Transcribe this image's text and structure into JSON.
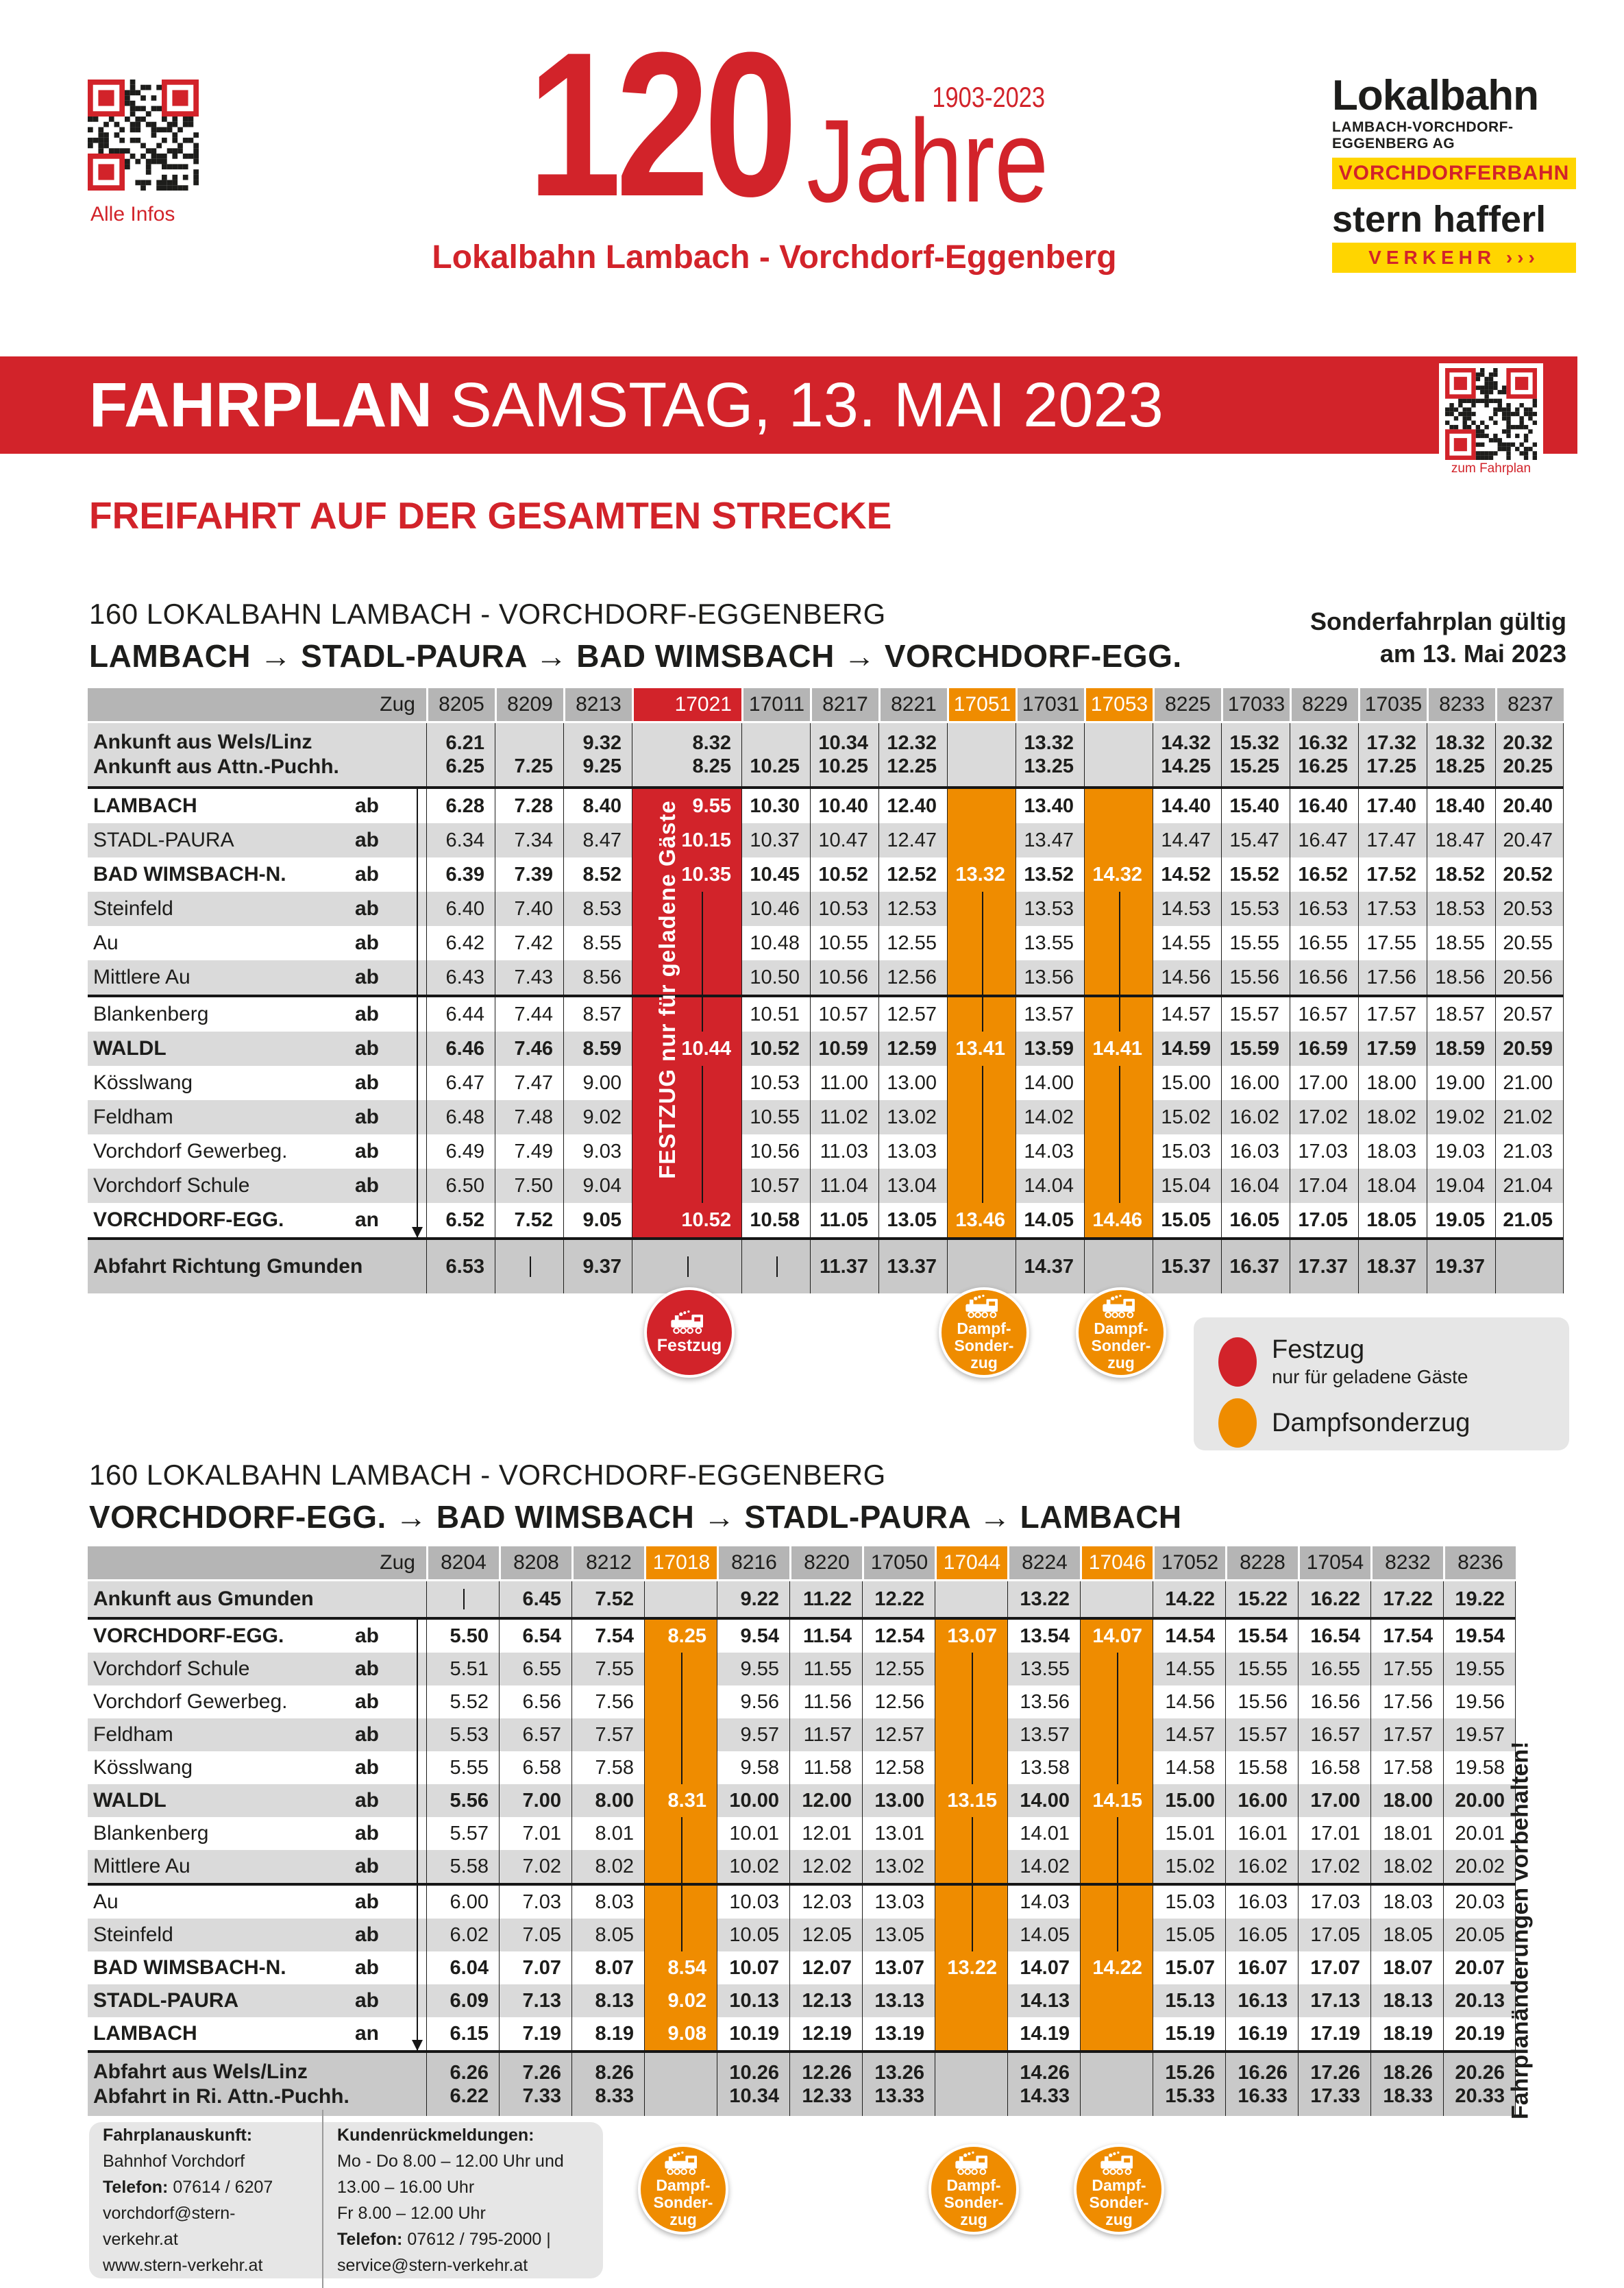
{
  "colors": {
    "red": "#d2232a",
    "orange": "#ef8c00",
    "yellow": "#ffd500"
  },
  "header": {
    "qr_caption": "Alle Infos",
    "years": "120",
    "period": "1903-2023",
    "jahre": "Jahre",
    "subtitle": "Lokalbahn Lambach - Vorchdorf-Eggenberg",
    "logo_lokalbahn": "Lokalbahn",
    "logo_ag": "LAMBACH-VORCHDORF-EGGENBERG AG",
    "logo_badge1": "VORCHDORFERBAHN",
    "logo_stern": "stern hafferl",
    "logo_badge2": "VERKEHR ›››"
  },
  "banner": {
    "title_bold": "FAHRPLAN",
    "title_rest": " SAMSTAG, 13. MAI 2023",
    "qr_caption": "zum Fahrplan"
  },
  "freifahrt": "FREIFAHRT AUF DER GESAMTEN STRECKE",
  "note": {
    "line1": "Sonderfahrplan gültig",
    "line2": "am 13. Mai 2023"
  },
  "side_note": "Fahrplanänderungen vorbehalten!",
  "legend": {
    "items": [
      {
        "color": "#d2232a",
        "label": "Festzug",
        "sub": "nur für geladene Gäste"
      },
      {
        "color": "#ef8c00",
        "label": "Dampfsonderzug",
        "sub": ""
      }
    ]
  },
  "badges": {
    "festzug": "Festzug",
    "dampf_lines": [
      "Dampf-",
      "Sonder-",
      "zug"
    ]
  },
  "table1": {
    "heading": "160 LOKALBAHN LAMBACH - VORCHDORF-EGGENBERG",
    "route": "LAMBACH → STADL-PAURA → BAD WIMSBACH → VORCHDORF-EGG.",
    "zug": "Zug",
    "festzug_note": "FESTZUG   nur für geladene Gäste",
    "trains": [
      {
        "id": "8205",
        "type": "plain"
      },
      {
        "id": "8209",
        "type": "plain"
      },
      {
        "id": "8213",
        "type": "plain"
      },
      {
        "id": "17021",
        "type": "red"
      },
      {
        "id": "17011",
        "type": "plain"
      },
      {
        "id": "8217",
        "type": "plain"
      },
      {
        "id": "8221",
        "type": "plain"
      },
      {
        "id": "17051",
        "type": "orange"
      },
      {
        "id": "17031",
        "type": "plain"
      },
      {
        "id": "17053",
        "type": "orange"
      },
      {
        "id": "8225",
        "type": "plain"
      },
      {
        "id": "17033",
        "type": "plain"
      },
      {
        "id": "8229",
        "type": "plain"
      },
      {
        "id": "17035",
        "type": "plain"
      },
      {
        "id": "8233",
        "type": "plain"
      },
      {
        "id": "8237",
        "type": "plain"
      }
    ],
    "pre": {
      "labels": [
        "Ankunft aus Wels/Linz",
        "Ankunft aus Attn.-Puchh."
      ],
      "rows": [
        [
          "6.21",
          "",
          "9.32",
          "8.32",
          "",
          "10.34",
          "12.32",
          "",
          "13.32",
          "",
          "14.32",
          "15.32",
          "16.32",
          "17.32",
          "18.32",
          "20.32"
        ],
        [
          "6.25",
          "7.25",
          "9.25",
          "8.25",
          "10.25",
          "10.25",
          "12.25",
          "",
          "13.25",
          "",
          "14.25",
          "15.25",
          "16.25",
          "17.25",
          "18.25",
          "20.25"
        ]
      ]
    },
    "separators": [
      0,
      6
    ],
    "stations": [
      {
        "name": "LAMBACH",
        "tag": "ab",
        "bold": true,
        "values": [
          "6.28",
          "7.28",
          "8.40",
          "9.55",
          "10.30",
          "10.40",
          "12.40",
          "",
          "13.40",
          "",
          "14.40",
          "15.40",
          "16.40",
          "17.40",
          "18.40",
          "20.40"
        ]
      },
      {
        "name": "STADL-PAURA",
        "tag": "ab",
        "bold": false,
        "values": [
          "6.34",
          "7.34",
          "8.47",
          "10.15",
          "10.37",
          "10.47",
          "12.47",
          "",
          "13.47",
          "",
          "14.47",
          "15.47",
          "16.47",
          "17.47",
          "18.47",
          "20.47"
        ]
      },
      {
        "name": "BAD WIMSBACH-N.",
        "tag": "ab",
        "bold": true,
        "values": [
          "6.39",
          "7.39",
          "8.52",
          "10.35",
          "10.45",
          "10.52",
          "12.52",
          "13.32",
          "13.52",
          "14.32",
          "14.52",
          "15.52",
          "16.52",
          "17.52",
          "18.52",
          "20.52"
        ]
      },
      {
        "name": "Steinfeld",
        "tag": "ab",
        "bold": false,
        "values": [
          "6.40",
          "7.40",
          "8.53",
          "|",
          "10.46",
          "10.53",
          "12.53",
          "|",
          "13.53",
          "|",
          "14.53",
          "15.53",
          "16.53",
          "17.53",
          "18.53",
          "20.53"
        ]
      },
      {
        "name": "Au",
        "tag": "ab",
        "bold": false,
        "values": [
          "6.42",
          "7.42",
          "8.55",
          "|",
          "10.48",
          "10.55",
          "12.55",
          "|",
          "13.55",
          "|",
          "14.55",
          "15.55",
          "16.55",
          "17.55",
          "18.55",
          "20.55"
        ]
      },
      {
        "name": "Mittlere Au",
        "tag": "ab",
        "bold": false,
        "values": [
          "6.43",
          "7.43",
          "8.56",
          "|",
          "10.50",
          "10.56",
          "12.56",
          "|",
          "13.56",
          "|",
          "14.56",
          "15.56",
          "16.56",
          "17.56",
          "18.56",
          "20.56"
        ]
      },
      {
        "name": "Blankenberg",
        "tag": "ab",
        "bold": false,
        "values": [
          "6.44",
          "7.44",
          "8.57",
          "|",
          "10.51",
          "10.57",
          "12.57",
          "|",
          "13.57",
          "|",
          "14.57",
          "15.57",
          "16.57",
          "17.57",
          "18.57",
          "20.57"
        ]
      },
      {
        "name": "WALDL",
        "tag": "ab",
        "bold": true,
        "values": [
          "6.46",
          "7.46",
          "8.59",
          "10.44",
          "10.52",
          "10.59",
          "12.59",
          "13.41",
          "13.59",
          "14.41",
          "14.59",
          "15.59",
          "16.59",
          "17.59",
          "18.59",
          "20.59"
        ]
      },
      {
        "name": "Kösslwang",
        "tag": "ab",
        "bold": false,
        "values": [
          "6.47",
          "7.47",
          "9.00",
          "|",
          "10.53",
          "11.00",
          "13.00",
          "|",
          "14.00",
          "|",
          "15.00",
          "16.00",
          "17.00",
          "18.00",
          "19.00",
          "21.00"
        ]
      },
      {
        "name": "Feldham",
        "tag": "ab",
        "bold": false,
        "values": [
          "6.48",
          "7.48",
          "9.02",
          "|",
          "10.55",
          "11.02",
          "13.02",
          "|",
          "14.02",
          "|",
          "15.02",
          "16.02",
          "17.02",
          "18.02",
          "19.02",
          "21.02"
        ]
      },
      {
        "name": "Vorchdorf Gewerbeg.",
        "tag": "ab",
        "bold": false,
        "values": [
          "6.49",
          "7.49",
          "9.03",
          "|",
          "10.56",
          "11.03",
          "13.03",
          "|",
          "14.03",
          "|",
          "15.03",
          "16.03",
          "17.03",
          "18.03",
          "19.03",
          "21.03"
        ]
      },
      {
        "name": "Vorchdorf Schule",
        "tag": "ab",
        "bold": false,
        "values": [
          "6.50",
          "7.50",
          "9.04",
          "|",
          "10.57",
          "11.04",
          "13.04",
          "|",
          "14.04",
          "|",
          "15.04",
          "16.04",
          "17.04",
          "18.04",
          "19.04",
          "21.04"
        ]
      },
      {
        "name": "VORCHDORF-EGG.",
        "tag": "an",
        "bold": true,
        "values": [
          "6.52",
          "7.52",
          "9.05",
          "10.52",
          "10.58",
          "11.05",
          "13.05",
          "13.46",
          "14.05",
          "14.46",
          "15.05",
          "16.05",
          "17.05",
          "18.05",
          "19.05",
          "21.05"
        ]
      }
    ],
    "post": {
      "labels": [
        "Abfahrt Richtung Gmunden"
      ],
      "rows": [
        [
          "6.53",
          "|",
          "9.37",
          "|",
          "|",
          "11.37",
          "13.37",
          "",
          "14.37",
          "",
          "15.37",
          "16.37",
          "17.37",
          "18.37",
          "19.37",
          ""
        ]
      ]
    }
  },
  "table2": {
    "heading": "160 LOKALBAHN LAMBACH - VORCHDORF-EGGENBERG",
    "route": "VORCHDORF-EGG. → BAD WIMSBACH → STADL-PAURA → LAMBACH",
    "zug": "Zug",
    "trains": [
      {
        "id": "8204",
        "type": "plain"
      },
      {
        "id": "8208",
        "type": "plain"
      },
      {
        "id": "8212",
        "type": "plain"
      },
      {
        "id": "17018",
        "type": "orange"
      },
      {
        "id": "8216",
        "type": "plain"
      },
      {
        "id": "8220",
        "type": "plain"
      },
      {
        "id": "17050",
        "type": "plain"
      },
      {
        "id": "17044",
        "type": "orange"
      },
      {
        "id": "8224",
        "type": "plain"
      },
      {
        "id": "17046",
        "type": "orange"
      },
      {
        "id": "17052",
        "type": "plain"
      },
      {
        "id": "8228",
        "type": "plain"
      },
      {
        "id": "17054",
        "type": "plain"
      },
      {
        "id": "8232",
        "type": "plain"
      },
      {
        "id": "8236",
        "type": "plain"
      }
    ],
    "pre": {
      "labels": [
        "Ankunft aus Gmunden"
      ],
      "rows": [
        [
          "|",
          "6.45",
          "7.52",
          "",
          "9.22",
          "11.22",
          "12.22",
          "",
          "13.22",
          "",
          "14.22",
          "15.22",
          "16.22",
          "17.22",
          "19.22"
        ]
      ]
    },
    "separators": [
      0,
      8
    ],
    "stations": [
      {
        "name": "VORCHDORF-EGG.",
        "tag": "ab",
        "bold": true,
        "values": [
          "5.50",
          "6.54",
          "7.54",
          "8.25",
          "9.54",
          "11.54",
          "12.54",
          "13.07",
          "13.54",
          "14.07",
          "14.54",
          "15.54",
          "16.54",
          "17.54",
          "19.54"
        ]
      },
      {
        "name": "Vorchdorf Schule",
        "tag": "ab",
        "bold": false,
        "values": [
          "5.51",
          "6.55",
          "7.55",
          "|",
          "9.55",
          "11.55",
          "12.55",
          "|",
          "13.55",
          "|",
          "14.55",
          "15.55",
          "16.55",
          "17.55",
          "19.55"
        ]
      },
      {
        "name": "Vorchdorf Gewerbeg.",
        "tag": "ab",
        "bold": false,
        "values": [
          "5.52",
          "6.56",
          "7.56",
          "|",
          "9.56",
          "11.56",
          "12.56",
          "|",
          "13.56",
          "|",
          "14.56",
          "15.56",
          "16.56",
          "17.56",
          "19.56"
        ]
      },
      {
        "name": "Feldham",
        "tag": "ab",
        "bold": false,
        "values": [
          "5.53",
          "6.57",
          "7.57",
          "|",
          "9.57",
          "11.57",
          "12.57",
          "|",
          "13.57",
          "|",
          "14.57",
          "15.57",
          "16.57",
          "17.57",
          "19.57"
        ]
      },
      {
        "name": "Kösslwang",
        "tag": "ab",
        "bold": false,
        "values": [
          "5.55",
          "6.58",
          "7.58",
          "|",
          "9.58",
          "11.58",
          "12.58",
          "|",
          "13.58",
          "|",
          "14.58",
          "15.58",
          "16.58",
          "17.58",
          "19.58"
        ]
      },
      {
        "name": "WALDL",
        "tag": "ab",
        "bold": true,
        "values": [
          "5.56",
          "7.00",
          "8.00",
          "8.31",
          "10.00",
          "12.00",
          "13.00",
          "13.15",
          "14.00",
          "14.15",
          "15.00",
          "16.00",
          "17.00",
          "18.00",
          "20.00"
        ]
      },
      {
        "name": "Blankenberg",
        "tag": "ab",
        "bold": false,
        "values": [
          "5.57",
          "7.01",
          "8.01",
          "|",
          "10.01",
          "12.01",
          "13.01",
          "|",
          "14.01",
          "|",
          "15.01",
          "16.01",
          "17.01",
          "18.01",
          "20.01"
        ]
      },
      {
        "name": "Mittlere Au",
        "tag": "ab",
        "bold": false,
        "values": [
          "5.58",
          "7.02",
          "8.02",
          "|",
          "10.02",
          "12.02",
          "13.02",
          "|",
          "14.02",
          "|",
          "15.02",
          "16.02",
          "17.02",
          "18.02",
          "20.02"
        ]
      },
      {
        "name": "Au",
        "tag": "ab",
        "bold": false,
        "values": [
          "6.00",
          "7.03",
          "8.03",
          "|",
          "10.03",
          "12.03",
          "13.03",
          "|",
          "14.03",
          "|",
          "15.03",
          "16.03",
          "17.03",
          "18.03",
          "20.03"
        ]
      },
      {
        "name": "Steinfeld",
        "tag": "ab",
        "bold": false,
        "values": [
          "6.02",
          "7.05",
          "8.05",
          "|",
          "10.05",
          "12.05",
          "13.05",
          "|",
          "14.05",
          "|",
          "15.05",
          "16.05",
          "17.05",
          "18.05",
          "20.05"
        ]
      },
      {
        "name": "BAD WIMSBACH-N.",
        "tag": "ab",
        "bold": true,
        "values": [
          "6.04",
          "7.07",
          "8.07",
          "8.54",
          "10.07",
          "12.07",
          "13.07",
          "13.22",
          "14.07",
          "14.22",
          "15.07",
          "16.07",
          "17.07",
          "18.07",
          "20.07"
        ]
      },
      {
        "name": "STADL-PAURA",
        "tag": "ab",
        "bold": true,
        "values": [
          "6.09",
          "7.13",
          "8.13",
          "9.02",
          "10.13",
          "12.13",
          "13.13",
          "",
          "14.13",
          "",
          "15.13",
          "16.13",
          "17.13",
          "18.13",
          "20.13"
        ]
      },
      {
        "name": "LAMBACH",
        "tag": "an",
        "bold": true,
        "values": [
          "6.15",
          "7.19",
          "8.19",
          "9.08",
          "10.19",
          "12.19",
          "13.19",
          "",
          "14.19",
          "",
          "15.19",
          "16.19",
          "17.19",
          "18.19",
          "20.19"
        ]
      }
    ],
    "post": {
      "labels": [
        "Abfahrt aus Wels/Linz",
        "Abfahrt in Ri. Attn.-Puchh."
      ],
      "rows": [
        [
          "6.26",
          "7.26",
          "8.26",
          "",
          "10.26",
          "12.26",
          "13.26",
          "",
          "14.26",
          "",
          "15.26",
          "16.26",
          "17.26",
          "18.26",
          "20.26"
        ],
        [
          "6.22",
          "7.33",
          "8.33",
          "",
          "10.34",
          "12.33",
          "13.33",
          "",
          "14.33",
          "",
          "15.33",
          "16.33",
          "17.33",
          "18.33",
          "20.33"
        ]
      ]
    }
  },
  "footer": {
    "col1": [
      {
        "b": "Fahrplanauskunft:",
        "t": " Bahnhof Vorchdorf"
      },
      {
        "b": "Telefon:",
        "t": " 07614 / 6207"
      },
      {
        "b": "",
        "t": "vorchdorf@stern-verkehr.at"
      },
      {
        "b": "",
        "t": "www.stern-verkehr.at"
      }
    ],
    "col2": [
      {
        "b": "Kundenrückmeldungen:",
        "t": ""
      },
      {
        "b": "",
        "t": "Mo - Do 8.00 – 12.00 Uhr und 13.00 – 16.00 Uhr"
      },
      {
        "b": "",
        "t": "Fr 8.00 – 12.00 Uhr"
      },
      {
        "b": "Telefon:",
        "t": " 07612 / 795-2000  |  service@stern-verkehr.at"
      }
    ]
  }
}
